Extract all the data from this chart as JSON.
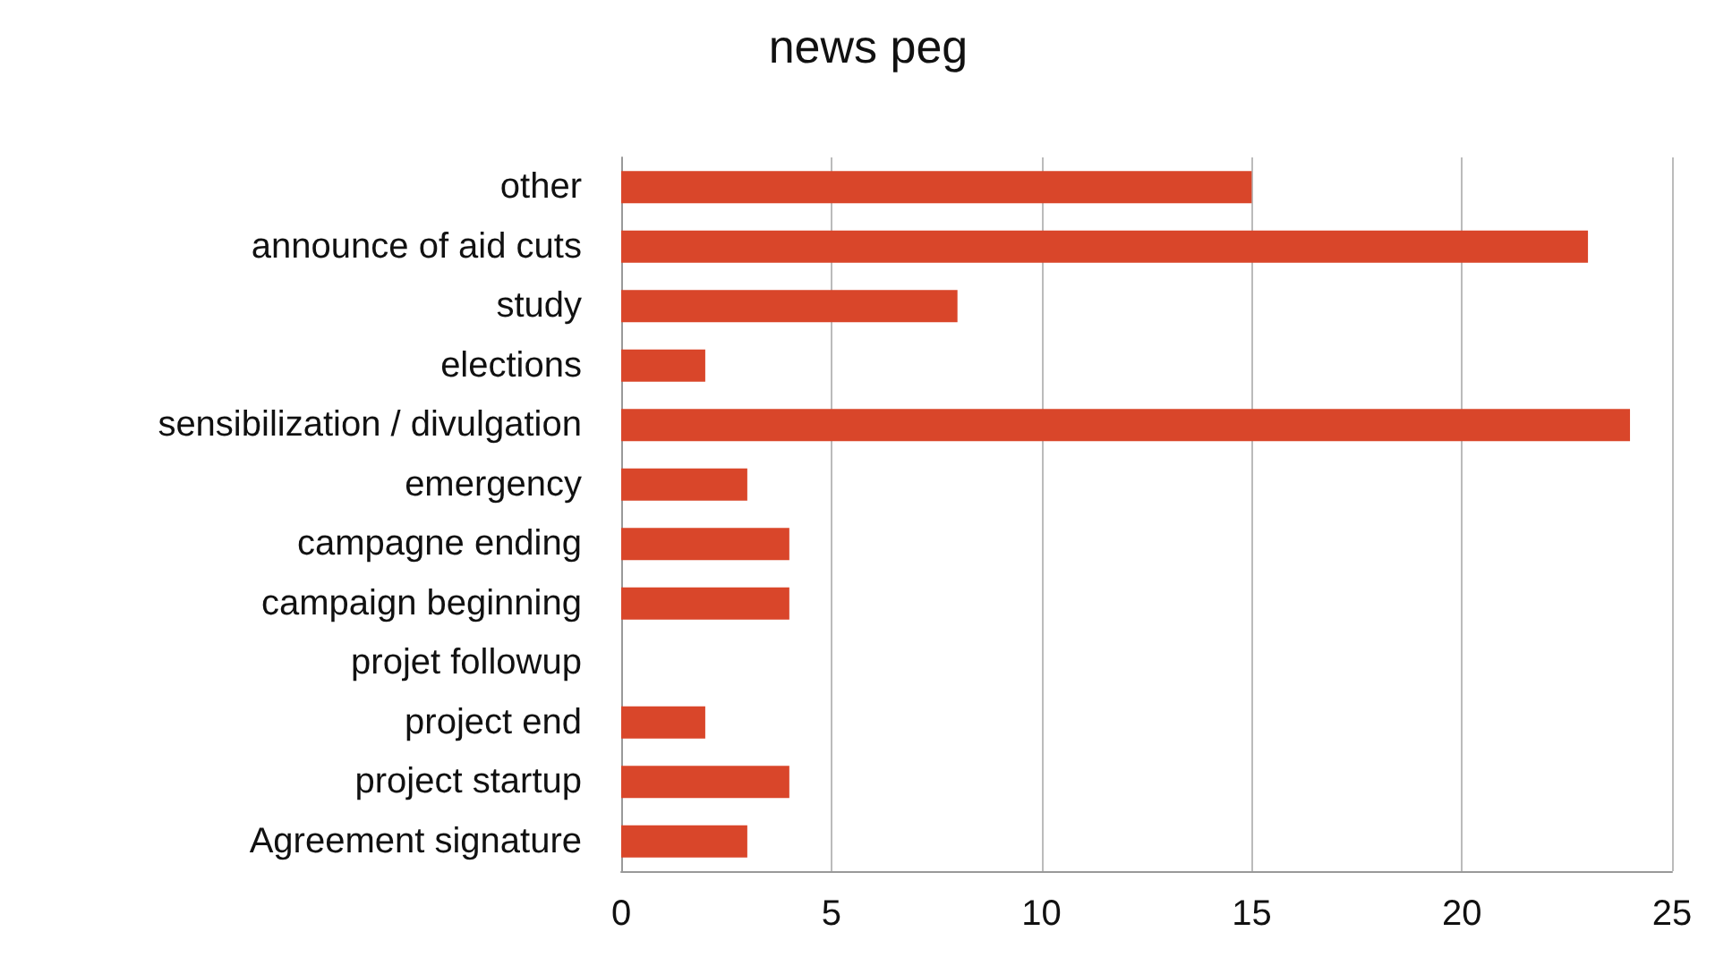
{
  "chart_data": {
    "type": "bar",
    "title": "news peg",
    "orientation": "horizontal",
    "categories": [
      "other",
      "announce of aid cuts",
      "study",
      "elections",
      "sensibilization / divulgation",
      "emergency",
      "campagne ending",
      "campaign beginning",
      "projet followup",
      "project end",
      "project startup",
      "Agreement signature"
    ],
    "values": [
      15,
      23,
      8,
      2,
      24,
      3,
      4,
      4,
      0,
      2,
      4,
      3
    ],
    "color": "#d9462a",
    "xlim": [
      0,
      25
    ],
    "xticks": [
      0,
      5,
      10,
      15,
      20,
      25
    ],
    "grid": "x"
  }
}
